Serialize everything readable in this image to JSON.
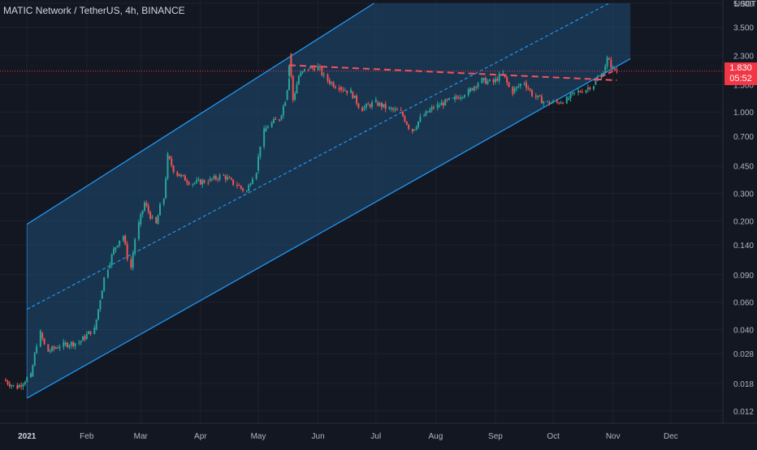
{
  "chart_data": {
    "type": "candlestick",
    "title": "MATIC Network / TetherUS, 4h, BINANCE",
    "price_unit": "USDT",
    "y_scale": "log",
    "ylim": [
      0.01,
      5.0
    ],
    "y_ticks": [
      "5.000",
      "3.500",
      "2.300",
      "1.500",
      "1.000",
      "0.700",
      "0.450",
      "0.300",
      "0.200",
      "0.140",
      "0.090",
      "0.060",
      "0.040",
      "0.028",
      "0.018",
      "0.012"
    ],
    "x_ticks": [
      "2021",
      "Feb",
      "Mar",
      "Apr",
      "May",
      "Jun",
      "Jul",
      "Aug",
      "Sep",
      "Oct",
      "Nov",
      "Dec"
    ],
    "last_price": "1.830",
    "countdown": "05:52",
    "series": [
      {
        "values": [
          [
            "2020-12-20",
            0.019
          ],
          [
            "2020-12-27",
            0.017
          ],
          [
            "2021-01-03",
            0.02
          ],
          [
            "2021-01-08",
            0.038
          ],
          [
            "2021-01-12",
            0.029
          ],
          [
            "2021-01-20",
            0.032
          ],
          [
            "2021-01-28",
            0.033
          ],
          [
            "2021-02-05",
            0.04
          ],
          [
            "2021-02-08",
            0.063
          ],
          [
            "2021-02-12",
            0.1
          ],
          [
            "2021-02-15",
            0.13
          ],
          [
            "2021-02-20",
            0.16
          ],
          [
            "2021-02-24",
            0.1
          ],
          [
            "2021-02-28",
            0.19
          ],
          [
            "2021-03-03",
            0.26
          ],
          [
            "2021-03-09",
            0.19
          ],
          [
            "2021-03-13",
            0.28
          ],
          [
            "2021-03-15",
            0.52
          ],
          [
            "2021-03-20",
            0.4
          ],
          [
            "2021-03-28",
            0.35
          ],
          [
            "2021-04-05",
            0.36
          ],
          [
            "2021-04-13",
            0.39
          ],
          [
            "2021-04-20",
            0.34
          ],
          [
            "2021-04-25",
            0.31
          ],
          [
            "2021-04-30",
            0.42
          ],
          [
            "2021-05-04",
            0.75
          ],
          [
            "2021-05-08",
            0.85
          ],
          [
            "2021-05-12",
            0.9
          ],
          [
            "2021-05-15",
            1.2
          ],
          [
            "2021-05-17",
            1.7
          ],
          [
            "2021-05-18",
            2.35
          ],
          [
            "2021-05-19",
            1.2
          ],
          [
            "2021-05-22",
            1.7
          ],
          [
            "2021-05-27",
            1.9
          ],
          [
            "2021-06-01",
            1.95
          ],
          [
            "2021-06-06",
            1.6
          ],
          [
            "2021-06-12",
            1.45
          ],
          [
            "2021-06-18",
            1.35
          ],
          [
            "2021-06-24",
            1.05
          ],
          [
            "2021-07-01",
            1.15
          ],
          [
            "2021-07-08",
            1.05
          ],
          [
            "2021-07-14",
            1.0
          ],
          [
            "2021-07-20",
            0.76
          ],
          [
            "2021-07-26",
            0.95
          ],
          [
            "2021-08-02",
            1.1
          ],
          [
            "2021-08-10",
            1.2
          ],
          [
            "2021-08-18",
            1.35
          ],
          [
            "2021-08-25",
            1.6
          ],
          [
            "2021-08-31",
            1.55
          ],
          [
            "2021-09-05",
            1.75
          ],
          [
            "2021-09-10",
            1.35
          ],
          [
            "2021-09-16",
            1.55
          ],
          [
            "2021-09-22",
            1.25
          ],
          [
            "2021-09-28",
            1.15
          ],
          [
            "2021-10-03",
            1.15
          ],
          [
            "2021-10-08",
            1.2
          ],
          [
            "2021-10-14",
            1.35
          ],
          [
            "2021-10-18",
            1.4
          ],
          [
            "2021-10-22",
            1.5
          ],
          [
            "2021-10-26",
            1.7
          ],
          [
            "2021-10-29",
            2.2
          ],
          [
            "2021-11-01",
            1.9
          ],
          [
            "2021-11-03",
            1.83
          ]
        ]
      }
    ],
    "annotations": {
      "channel": {
        "upper": [
          [
            "2021-01-01",
            0.19
          ],
          [
            "2021-06-30",
            5.0
          ]
        ],
        "middle": [
          [
            "2021-01-01",
            0.054
          ],
          [
            "2021-10-30",
            5.0
          ]
        ],
        "lower": [
          [
            "2021-01-01",
            0.0145
          ],
          [
            "2021-11-10",
            2.2
          ]
        ],
        "fill_until": "2021-11-10"
      },
      "resistance": [
        [
          "2021-05-17",
          2.0
        ],
        [
          "2021-11-03",
          1.6
        ]
      ],
      "breakout_arrow": [
        [
          "2021-10-22",
          1.6
        ],
        [
          "2021-11-01",
          1.83
        ]
      ]
    },
    "grid": true,
    "colors": {
      "up": "#26a69a",
      "down": "#ef5350",
      "channel": "#2196f3",
      "fill": "#1f4d73",
      "dashed": "#f7525f",
      "background": "#131722"
    }
  }
}
